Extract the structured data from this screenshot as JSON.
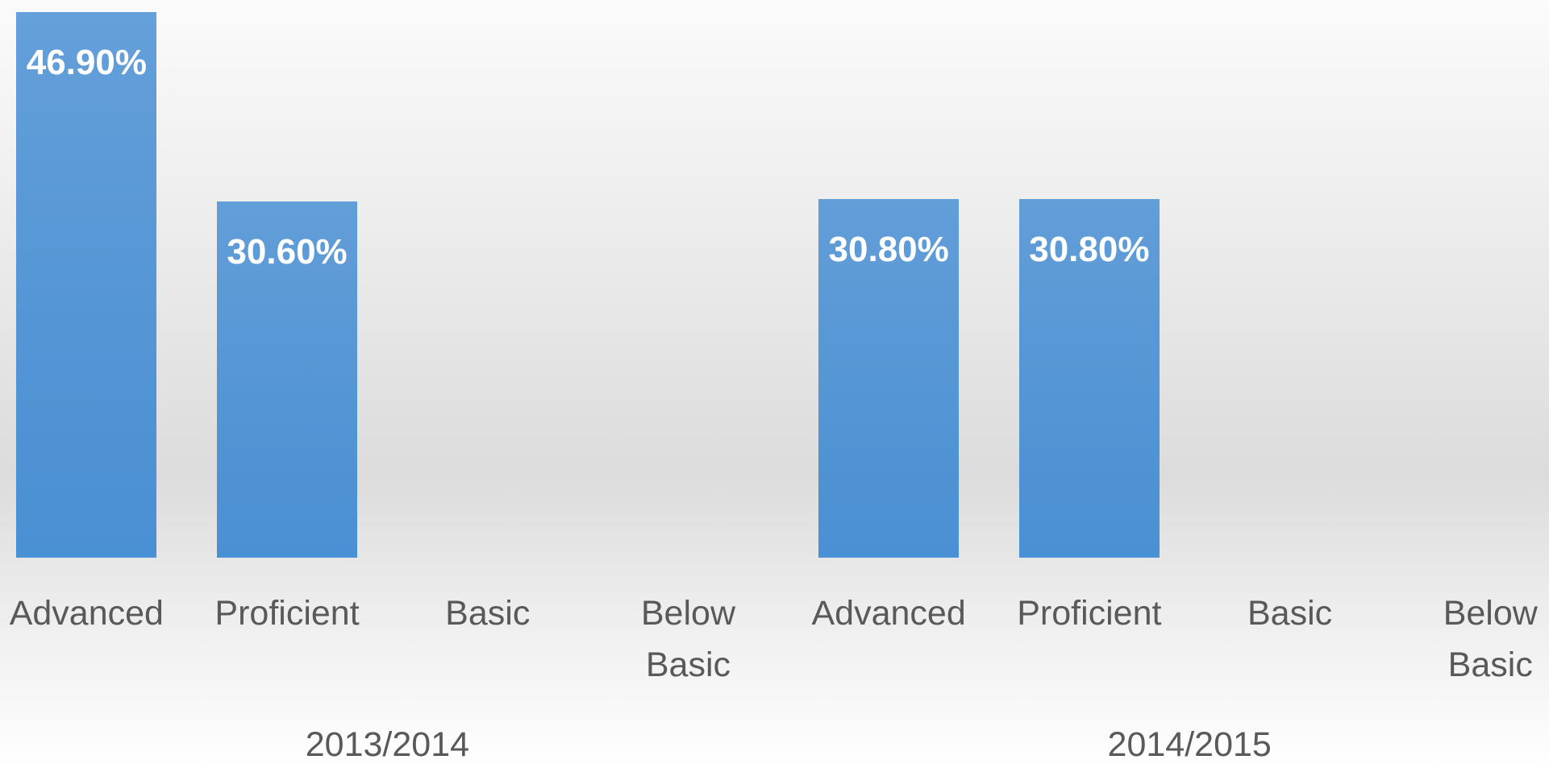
{
  "chart_data": {
    "type": "bar",
    "categories": [
      "Advanced",
      "Proficient",
      "Basic",
      "Below Basic",
      "Advanced",
      "Proficient",
      "Basic",
      "Below Basic"
    ],
    "values": [
      46.9,
      30.6,
      null,
      null,
      30.8,
      30.8,
      null,
      null
    ],
    "value_labels": [
      "46.90%",
      "30.60%",
      null,
      null,
      "30.80%",
      "30.80%",
      null,
      null
    ],
    "groups": [
      "2013/2014",
      "2014/2015"
    ],
    "color": "#4a90d4",
    "ylim": [
      0,
      50
    ]
  }
}
